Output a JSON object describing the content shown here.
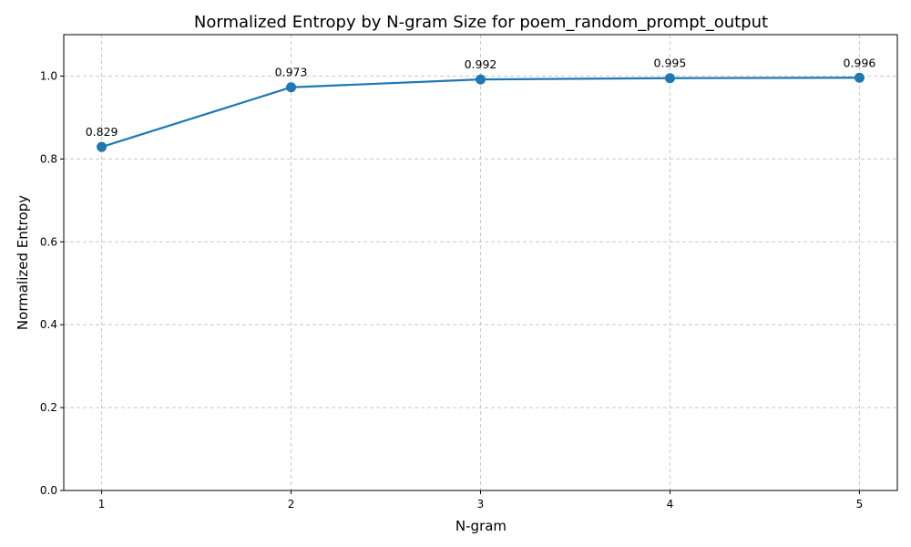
{
  "chart_data": {
    "type": "line",
    "title": "Normalized Entropy by N-gram Size for poem_random_prompt_output",
    "xlabel": "N-gram",
    "ylabel": "Normalized Entropy",
    "x": [
      1,
      2,
      3,
      4,
      5
    ],
    "x_tick_labels": [
      "1",
      "2",
      "3",
      "4",
      "5"
    ],
    "xlim": [
      0.8,
      5.2
    ],
    "ylim": [
      0.0,
      1.1
    ],
    "y_ticks": [
      0.0,
      0.2,
      0.4,
      0.6,
      0.8,
      1.0
    ],
    "y_tick_labels": [
      "0.0",
      "0.2",
      "0.4",
      "0.6",
      "0.8",
      "1.0"
    ],
    "series": [
      {
        "values": [
          0.829,
          0.973,
          0.992,
          0.995,
          0.996
        ],
        "data_labels": [
          "0.829",
          "0.973",
          "0.992",
          "0.995",
          "0.996"
        ],
        "color": "#1f77b4",
        "marker": "circle"
      }
    ],
    "grid": true,
    "grid_style": "dashed",
    "legend": "none"
  }
}
